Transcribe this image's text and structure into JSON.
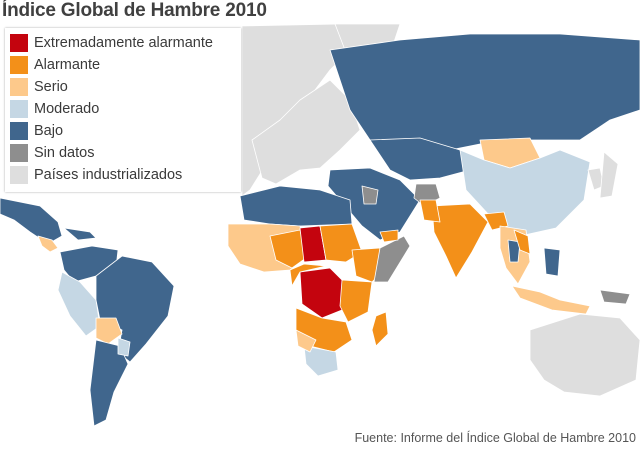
{
  "title": "Índice Global de Hambre 2010",
  "legend": {
    "items": [
      {
        "label": "Extremadamente alarmante",
        "color": "#c4040e"
      },
      {
        "label": "Alarmante",
        "color": "#f39019"
      },
      {
        "label": "Serio",
        "color": "#fdc98b"
      },
      {
        "label": "Moderado",
        "color": "#c5d7e4"
      },
      {
        "label": "Bajo",
        "color": "#40668d"
      },
      {
        "label": "Sin datos",
        "color": "#8e8e8e"
      },
      {
        "label": "Países industrializados",
        "color": "#dedede"
      }
    ]
  },
  "source": "Fuente: Informe del Índice Global de Hambre 2010"
}
